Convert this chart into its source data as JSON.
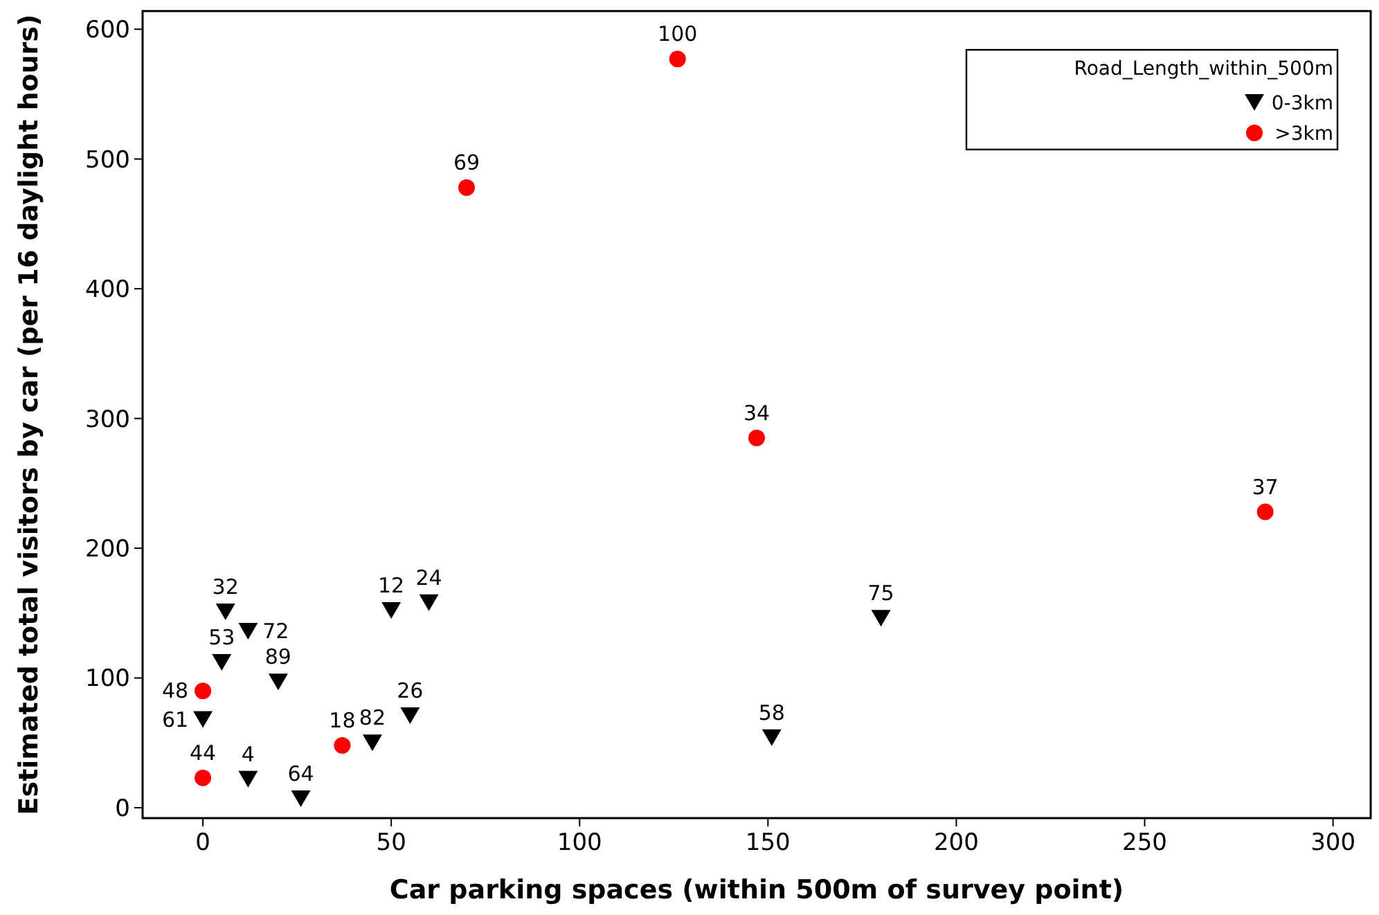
{
  "chart_data": {
    "type": "scatter",
    "xlabel": "Car parking spaces (within 500m of survey point)",
    "ylabel": "Estimated total visitors by car (per 16 daylight hours)",
    "legend_title": "Road_Length_within_500m",
    "legend": "top right",
    "grid": false,
    "xlim": [
      -16,
      310
    ],
    "ylim": [
      -8,
      614
    ],
    "xticks": [
      0,
      50,
      100,
      150,
      200,
      250,
      300
    ],
    "yticks": [
      0,
      100,
      200,
      300,
      400,
      500,
      600
    ],
    "series": [
      {
        "name": "0-3km",
        "color": "#000000",
        "marker": "triangle",
        "x": [
          6,
          12,
          5,
          20,
          0,
          12,
          26,
          50,
          60,
          55,
          45,
          151,
          180
        ],
        "values": [
          151,
          136,
          112,
          97,
          68,
          22,
          7,
          152,
          158,
          71,
          50,
          54,
          146
        ]
      },
      {
        "name": ">3km",
        "color": "#ff0000",
        "marker": "circle",
        "x": [
          0,
          0,
          37,
          70,
          126,
          147,
          282
        ],
        "values": [
          90,
          23,
          48,
          478,
          577,
          285,
          228
        ]
      }
    ],
    "annotations": [
      {
        "text": "32",
        "x": 6,
        "y": 151
      },
      {
        "text": "72",
        "x": 12,
        "y": 136
      },
      {
        "text": "53",
        "x": 5,
        "y": 112
      },
      {
        "text": "89",
        "x": 20,
        "y": 97
      },
      {
        "text": "61",
        "x": 0,
        "y": 68
      },
      {
        "text": "4",
        "x": 12,
        "y": 22
      },
      {
        "text": "64",
        "x": 26,
        "y": 7
      },
      {
        "text": "12",
        "x": 50,
        "y": 152
      },
      {
        "text": "24",
        "x": 60,
        "y": 158
      },
      {
        "text": "26",
        "x": 55,
        "y": 71
      },
      {
        "text": "82",
        "x": 45,
        "y": 50
      },
      {
        "text": "58",
        "x": 151,
        "y": 54
      },
      {
        "text": "75",
        "x": 180,
        "y": 146
      },
      {
        "text": "48",
        "x": 0,
        "y": 90
      },
      {
        "text": "44",
        "x": 0,
        "y": 23
      },
      {
        "text": "18",
        "x": 37,
        "y": 48
      },
      {
        "text": "69",
        "x": 70,
        "y": 478
      },
      {
        "text": "100",
        "x": 126,
        "y": 577
      },
      {
        "text": "34",
        "x": 147,
        "y": 285
      },
      {
        "text": "37",
        "x": 282,
        "y": 228
      }
    ]
  }
}
